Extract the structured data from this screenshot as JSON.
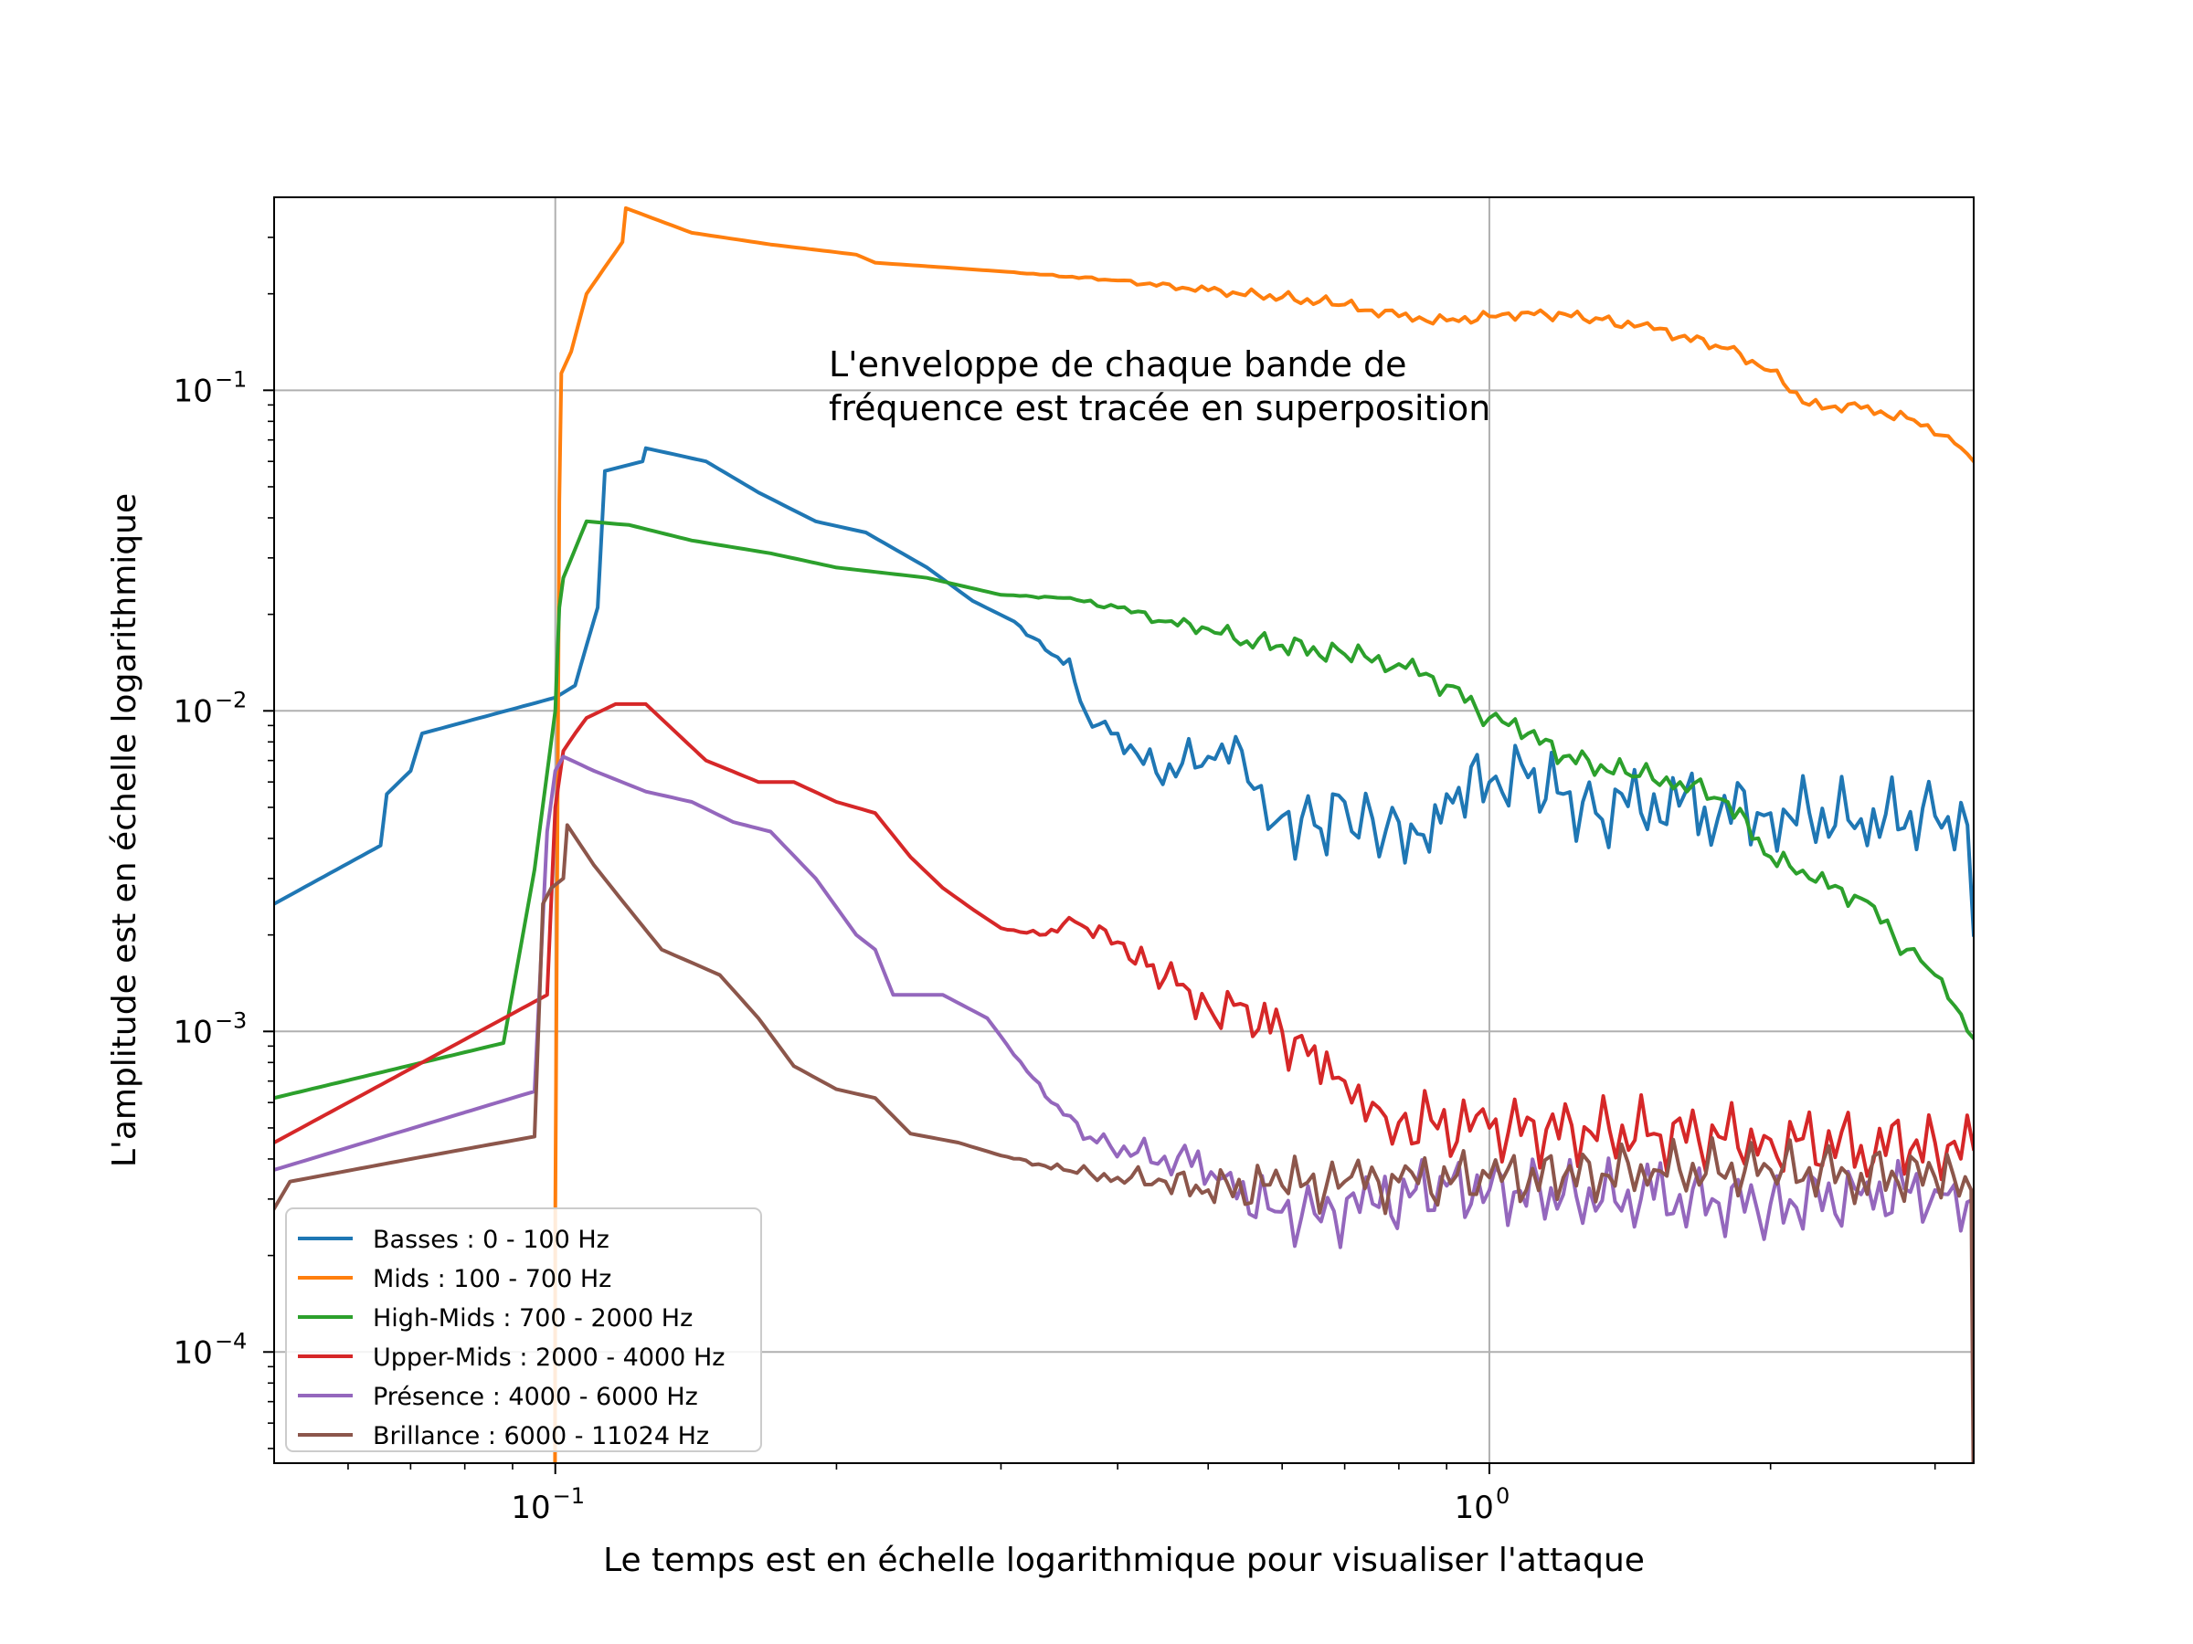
{
  "chart_data": {
    "type": "line",
    "xscale": "log",
    "yscale": "log",
    "xlim": [
      0.05,
      3.3
    ],
    "ylim": [
      4.5e-05,
      0.4
    ],
    "grid": true,
    "legend_position": "lower-left",
    "xlabel": "Le temps est en échelle logarithmique pour visualiser l'attaque",
    "ylabel": "L'amplitude est en échelle logarithmique",
    "annotation": [
      "L'enveloppe de chaque bande de",
      "fréquence est tracée en superposition"
    ],
    "x_ticks": [
      {
        "value": 0.1,
        "label_base": "10",
        "label_exp": "−1"
      },
      {
        "value": 1,
        "label_base": "10",
        "label_exp": "0"
      }
    ],
    "y_ticks": [
      {
        "value": 0.1,
        "label_base": "10",
        "label_exp": "−1"
      },
      {
        "value": 0.01,
        "label_base": "10",
        "label_exp": "−2"
      },
      {
        "value": 0.001,
        "label_base": "10",
        "label_exp": "−3"
      },
      {
        "value": 0.0001,
        "label_base": "10",
        "label_exp": "−4"
      }
    ],
    "series": [
      {
        "name": "Basses : 0 - 100 Hz",
        "color": "#1f77b4",
        "noise": 0.13,
        "points": [
          [
            0.05,
            0.0025
          ],
          [
            0.065,
            0.0038
          ],
          [
            0.066,
            0.0055
          ],
          [
            0.07,
            0.0065
          ],
          [
            0.072,
            0.0085
          ],
          [
            0.1,
            0.011
          ],
          [
            0.105,
            0.012
          ],
          [
            0.108,
            0.016
          ],
          [
            0.111,
            0.021
          ],
          [
            0.113,
            0.056
          ],
          [
            0.124,
            0.06
          ],
          [
            0.125,
            0.066
          ],
          [
            0.145,
            0.06
          ],
          [
            0.165,
            0.048
          ],
          [
            0.19,
            0.039
          ],
          [
            0.215,
            0.036
          ],
          [
            0.25,
            0.028
          ],
          [
            0.28,
            0.022
          ],
          [
            0.31,
            0.019
          ],
          [
            0.34,
            0.015
          ],
          [
            0.355,
            0.0145
          ],
          [
            0.37,
            0.0098
          ],
          [
            0.4,
            0.0085
          ],
          [
            0.44,
            0.0064
          ],
          [
            0.5,
            0.0072
          ],
          [
            0.535,
            0.0083
          ],
          [
            0.56,
            0.0057
          ],
          [
            0.6,
            0.0047
          ],
          [
            0.65,
            0.0044
          ],
          [
            0.7,
            0.0052
          ],
          [
            0.75,
            0.0046
          ],
          [
            0.8,
            0.0045
          ],
          [
            0.85,
            0.0041
          ],
          [
            0.9,
            0.0055
          ],
          [
            1.0,
            0.006
          ],
          [
            1.1,
            0.0062
          ],
          [
            1.2,
            0.0055
          ],
          [
            1.3,
            0.0048
          ],
          [
            1.5,
            0.0055
          ],
          [
            1.7,
            0.005
          ],
          [
            2.0,
            0.0048
          ],
          [
            2.5,
            0.0046
          ],
          [
            3.0,
            0.0047
          ],
          [
            3.25,
            0.0044
          ],
          [
            3.3,
            0.002
          ]
        ]
      },
      {
        "name": "Mids : 100 - 700 Hz",
        "color": "#ff7f0e",
        "noise": 0.02,
        "points": [
          [
            0.0999,
            2e-05
          ],
          [
            0.1,
            0.00027
          ],
          [
            0.101,
            0.045
          ],
          [
            0.1015,
            0.113
          ],
          [
            0.104,
            0.132
          ],
          [
            0.108,
            0.2
          ],
          [
            0.118,
            0.29
          ],
          [
            0.119,
            0.37
          ],
          [
            0.14,
            0.31
          ],
          [
            0.17,
            0.285
          ],
          [
            0.21,
            0.265
          ],
          [
            0.22,
            0.25
          ],
          [
            0.3,
            0.235
          ],
          [
            0.4,
            0.22
          ],
          [
            0.5,
            0.205
          ],
          [
            0.6,
            0.195
          ],
          [
            0.7,
            0.185
          ],
          [
            0.8,
            0.17
          ],
          [
            0.9,
            0.165
          ],
          [
            1.0,
            0.17
          ],
          [
            1.1,
            0.175
          ],
          [
            1.3,
            0.168
          ],
          [
            1.5,
            0.155
          ],
          [
            1.8,
            0.135
          ],
          [
            2.0,
            0.115
          ],
          [
            2.2,
            0.09
          ],
          [
            2.5,
            0.088
          ],
          [
            2.8,
            0.082
          ],
          [
            3.1,
            0.072
          ],
          [
            3.3,
            0.06
          ]
        ]
      },
      {
        "name": "High-Mids : 700 - 2000 Hz",
        "color": "#2ca02c",
        "noise": 0.04,
        "points": [
          [
            0.05,
            0.00062
          ],
          [
            0.088,
            0.00092
          ],
          [
            0.095,
            0.0032
          ],
          [
            0.1,
            0.01
          ],
          [
            0.101,
            0.021
          ],
          [
            0.102,
            0.026
          ],
          [
            0.108,
            0.039
          ],
          [
            0.12,
            0.038
          ],
          [
            0.14,
            0.034
          ],
          [
            0.17,
            0.031
          ],
          [
            0.2,
            0.028
          ],
          [
            0.25,
            0.026
          ],
          [
            0.3,
            0.023
          ],
          [
            0.35,
            0.0225
          ],
          [
            0.4,
            0.021
          ],
          [
            0.45,
            0.019
          ],
          [
            0.5,
            0.018
          ],
          [
            0.55,
            0.0165
          ],
          [
            0.6,
            0.016
          ],
          [
            0.7,
            0.015
          ],
          [
            0.8,
            0.014
          ],
          [
            0.9,
            0.012
          ],
          [
            1.0,
            0.0095
          ],
          [
            1.1,
            0.0085
          ],
          [
            1.2,
            0.0072
          ],
          [
            1.4,
            0.0064
          ],
          [
            1.6,
            0.006
          ],
          [
            1.8,
            0.0052
          ],
          [
            2.0,
            0.0035
          ],
          [
            2.2,
            0.003
          ],
          [
            2.5,
            0.0026
          ],
          [
            2.8,
            0.0018
          ],
          [
            3.0,
            0.0015
          ],
          [
            3.15,
            0.0012
          ],
          [
            3.3,
            0.00095
          ]
        ]
      },
      {
        "name": "Upper-Mids : 2000 - 4000 Hz",
        "color": "#d62728",
        "noise": 0.12,
        "points": [
          [
            0.05,
            0.00045
          ],
          [
            0.098,
            0.0013
          ],
          [
            0.1,
            0.005
          ],
          [
            0.102,
            0.0075
          ],
          [
            0.105,
            0.0085
          ],
          [
            0.108,
            0.0095
          ],
          [
            0.116,
            0.0105
          ],
          [
            0.125,
            0.0105
          ],
          [
            0.135,
            0.0085
          ],
          [
            0.145,
            0.007
          ],
          [
            0.165,
            0.006
          ],
          [
            0.18,
            0.006
          ],
          [
            0.2,
            0.0052
          ],
          [
            0.22,
            0.0048
          ],
          [
            0.24,
            0.0035
          ],
          [
            0.26,
            0.0028
          ],
          [
            0.28,
            0.0024
          ],
          [
            0.3,
            0.0021
          ],
          [
            0.33,
            0.002
          ],
          [
            0.36,
            0.0022
          ],
          [
            0.4,
            0.0019
          ],
          [
            0.43,
            0.0016
          ],
          [
            0.47,
            0.0014
          ],
          [
            0.5,
            0.0012
          ],
          [
            0.55,
            0.0012
          ],
          [
            0.6,
            0.001
          ],
          [
            0.65,
            0.0009
          ],
          [
            0.7,
            0.0007
          ],
          [
            0.75,
            0.0006
          ],
          [
            0.8,
            0.00052
          ],
          [
            1.0,
            0.0005
          ],
          [
            1.5,
            0.00048
          ],
          [
            2.0,
            0.00046
          ],
          [
            2.5,
            0.00044
          ],
          [
            3.0,
            0.00045
          ],
          [
            3.3,
            0.00043
          ]
        ]
      },
      {
        "name": "Présence : 4000 - 6000 Hz",
        "color": "#9467bd",
        "noise": 0.12,
        "points": [
          [
            0.05,
            0.00037
          ],
          [
            0.095,
            0.00065
          ],
          [
            0.098,
            0.0042
          ],
          [
            0.1,
            0.0065
          ],
          [
            0.102,
            0.0072
          ],
          [
            0.11,
            0.0065
          ],
          [
            0.125,
            0.0056
          ],
          [
            0.14,
            0.0052
          ],
          [
            0.155,
            0.0045
          ],
          [
            0.17,
            0.0042
          ],
          [
            0.19,
            0.003
          ],
          [
            0.21,
            0.002
          ],
          [
            0.22,
            0.0018
          ],
          [
            0.23,
            0.0013
          ],
          [
            0.26,
            0.0013
          ],
          [
            0.29,
            0.0011
          ],
          [
            0.32,
            0.00075
          ],
          [
            0.35,
            0.00055
          ],
          [
            0.38,
            0.00045
          ],
          [
            0.42,
            0.00042
          ],
          [
            0.48,
            0.00038
          ],
          [
            0.52,
            0.00035
          ],
          [
            0.58,
            0.00028
          ],
          [
            0.65,
            0.00027
          ],
          [
            0.75,
            0.00029
          ],
          [
            0.9,
            0.00033
          ],
          [
            1.0,
            0.00032
          ],
          [
            1.2,
            0.00031
          ],
          [
            1.5,
            0.0003
          ],
          [
            2.0,
            0.00029
          ],
          [
            2.5,
            0.00031
          ],
          [
            3.0,
            0.00032
          ],
          [
            3.3,
            0.0003
          ]
        ]
      },
      {
        "name": "Brillance : 6000 - 11024 Hz",
        "color": "#8c564b",
        "noise": 0.1,
        "points": [
          [
            0.05,
            0.00028
          ],
          [
            0.052,
            0.00034
          ],
          [
            0.07,
            0.0004
          ],
          [
            0.095,
            0.00047
          ],
          [
            0.097,
            0.0025
          ],
          [
            0.099,
            0.0028
          ],
          [
            0.102,
            0.003
          ],
          [
            0.103,
            0.0044
          ],
          [
            0.11,
            0.0033
          ],
          [
            0.12,
            0.0024
          ],
          [
            0.13,
            0.0018
          ],
          [
            0.15,
            0.0015
          ],
          [
            0.165,
            0.0011
          ],
          [
            0.18,
            0.00078
          ],
          [
            0.2,
            0.00066
          ],
          [
            0.22,
            0.00062
          ],
          [
            0.24,
            0.00048
          ],
          [
            0.27,
            0.00045
          ],
          [
            0.3,
            0.00041
          ],
          [
            0.35,
            0.00037
          ],
          [
            0.4,
            0.00035
          ],
          [
            0.45,
            0.00034
          ],
          [
            0.5,
            0.00032
          ],
          [
            0.6,
            0.00033
          ],
          [
            0.7,
            0.00034
          ],
          [
            0.8,
            0.00034
          ],
          [
            1.0,
            0.00035
          ],
          [
            1.2,
            0.00035
          ],
          [
            1.5,
            0.00037
          ],
          [
            2.0,
            0.00037
          ],
          [
            2.5,
            0.00036
          ],
          [
            3.0,
            0.00035
          ],
          [
            3.28,
            0.00032
          ],
          [
            3.3,
            3e-05
          ]
        ]
      }
    ]
  }
}
